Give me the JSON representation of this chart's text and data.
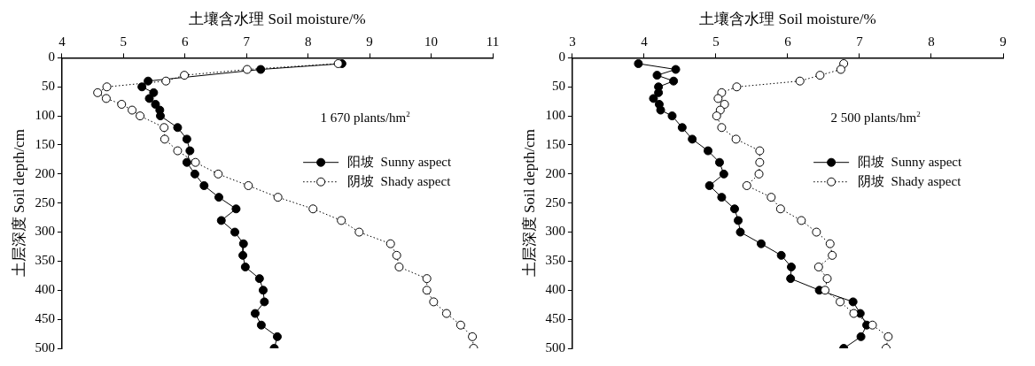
{
  "chart_data": [
    {
      "type": "line",
      "xlabel": "土壤含水理 Soil moisture/%",
      "ylabel": "土层深度 Soil depth/cm",
      "annotations": [
        "1 670 plants/hm$^{2}$"
      ],
      "xlim": [
        4,
        11
      ],
      "xticks": [
        4,
        5,
        6,
        7,
        8,
        9,
        10,
        11
      ],
      "ylim": [
        500,
        0
      ],
      "yticks": [
        0,
        50,
        100,
        150,
        200,
        250,
        300,
        350,
        400,
        450,
        500
      ],
      "legend": "right",
      "grid": false,
      "marker": "circle",
      "series": [
        {
          "name": "阳坡  Sunny aspect",
          "color": "#000000",
          "line_style": "solid",
          "x": [
            8.55,
            7.23,
            null,
            5.4,
            5.3,
            5.49,
            5.42,
            5.52,
            5.59,
            5.6,
            5.88,
            6.03,
            6.08,
            6.03,
            6.16,
            6.31,
            6.55,
            6.83,
            6.59,
            6.81,
            6.95,
            6.94,
            6.98,
            7.21,
            7.27,
            7.29,
            7.14,
            7.24,
            7.5,
            7.45
          ],
          "values": [
            10,
            20,
            null,
            40,
            50,
            60,
            70,
            80,
            90,
            100,
            120,
            140,
            160,
            180,
            200,
            220,
            240,
            260,
            280,
            300,
            320,
            340,
            360,
            380,
            400,
            420,
            440,
            460,
            480,
            500
          ]
        },
        {
          "name": "阴坡  Shady aspect",
          "color": "#ffffff",
          "line_style": "dotted",
          "x": [
            8.49,
            7.01,
            5.99,
            5.69,
            4.73,
            4.58,
            4.72,
            4.97,
            5.14,
            5.27,
            5.66,
            5.67,
            5.88,
            6.17,
            6.54,
            7.03,
            7.51,
            8.08,
            8.54,
            8.83,
            9.34,
            9.44,
            9.48,
            9.93,
            9.93,
            10.04,
            10.25,
            10.48,
            10.67,
            10.69
          ],
          "values": [
            10,
            20,
            30,
            40,
            50,
            60,
            70,
            80,
            90,
            100,
            120,
            140,
            160,
            180,
            200,
            220,
            240,
            260,
            280,
            300,
            320,
            340,
            360,
            380,
            400,
            420,
            440,
            460,
            480,
            500
          ]
        }
      ]
    },
    {
      "type": "line",
      "xlabel": "土壤含水理 Soil moisture/%",
      "ylabel": "土层深度 Soil depth/cm",
      "annotations": [
        "2 500 plants/hm$^{2}$"
      ],
      "xlim": [
        3,
        9
      ],
      "xticks": [
        3,
        4,
        5,
        6,
        7,
        8,
        9
      ],
      "ylim": [
        500,
        0
      ],
      "yticks": [
        0,
        50,
        100,
        150,
        200,
        250,
        300,
        350,
        400,
        450,
        500
      ],
      "legend": "right",
      "grid": false,
      "marker": "circle",
      "series": [
        {
          "name": "阳坡  Sunny aspect",
          "color": "#000000",
          "line_style": "solid",
          "x": [
            3.92,
            4.44,
            4.18,
            4.41,
            4.2,
            4.2,
            4.13,
            4.21,
            4.23,
            4.39,
            4.53,
            4.67,
            4.89,
            5.05,
            5.11,
            4.91,
            5.08,
            5.26,
            5.31,
            5.34,
            5.63,
            5.91,
            6.05,
            6.04,
            6.44,
            6.91,
            7.01,
            7.1,
            7.02,
            6.78
          ],
          "values": [
            10,
            20,
            30,
            40,
            50,
            60,
            70,
            80,
            90,
            100,
            120,
            140,
            160,
            180,
            200,
            220,
            240,
            260,
            280,
            300,
            320,
            340,
            360,
            380,
            400,
            420,
            440,
            460,
            480,
            500
          ]
        },
        {
          "name": "阴坡  Shady aspect",
          "color": "#ffffff",
          "line_style": "dotted",
          "x": [
            6.78,
            6.74,
            6.45,
            6.17,
            5.29,
            5.08,
            5.03,
            5.12,
            5.06,
            5.01,
            5.08,
            5.28,
            5.61,
            5.61,
            5.6,
            5.43,
            5.77,
            5.9,
            6.19,
            6.4,
            6.59,
            6.62,
            6.43,
            6.55,
            6.52,
            6.73,
            6.92,
            7.18,
            7.4,
            7.37
          ],
          "values": [
            10,
            20,
            30,
            40,
            50,
            60,
            70,
            80,
            90,
            100,
            120,
            140,
            160,
            180,
            200,
            220,
            240,
            260,
            280,
            300,
            320,
            340,
            360,
            380,
            400,
            420,
            440,
            460,
            480,
            500
          ]
        }
      ]
    }
  ]
}
